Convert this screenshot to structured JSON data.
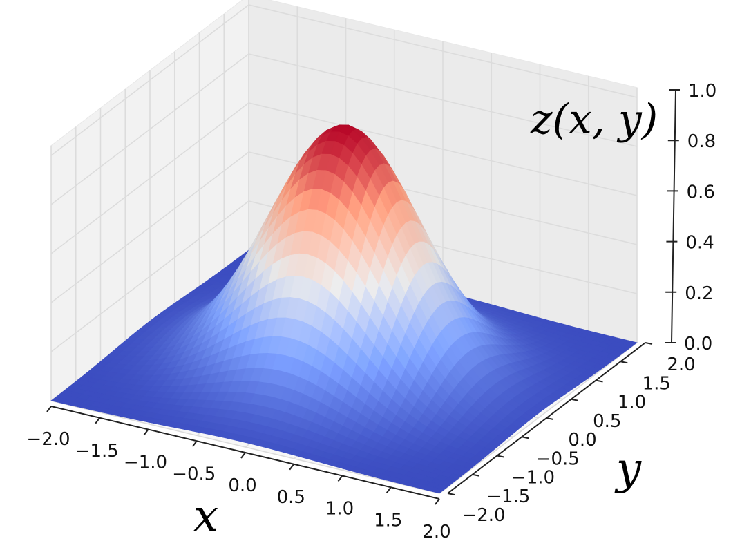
{
  "chart_data": {
    "type": "surface3d",
    "function": "gaussian",
    "title": "",
    "xlabel": "x",
    "ylabel": "y",
    "zlabel": "z(x, y)",
    "xlim": [
      -2.0,
      2.0
    ],
    "ylim": [
      -2.0,
      2.0
    ],
    "zlim": [
      0.0,
      1.0
    ],
    "x_ticks": [
      "−2.0",
      "−1.5",
      "−1.0",
      "−0.5",
      "0.0",
      "0.5",
      "1.0",
      "1.5",
      "2.0"
    ],
    "y_ticks": [
      "−2.0",
      "−1.5",
      "−1.0",
      "−0.5",
      "0.0",
      "0.5",
      "1.0",
      "1.5",
      "2.0"
    ],
    "z_ticks": [
      "0.0",
      "0.2",
      "0.4",
      "0.6",
      "0.8",
      "1.0"
    ],
    "peak": {
      "x": 0.0,
      "y": 0.0,
      "z": 1.0
    },
    "colormap": "coolwarm",
    "colormap_low": "#3b4cc0",
    "colormap_mid": "#dddddd",
    "colormap_high": "#b40426",
    "grid": true,
    "pane_color": "#f2f2f2",
    "grid_color": "#e6e6e6"
  }
}
